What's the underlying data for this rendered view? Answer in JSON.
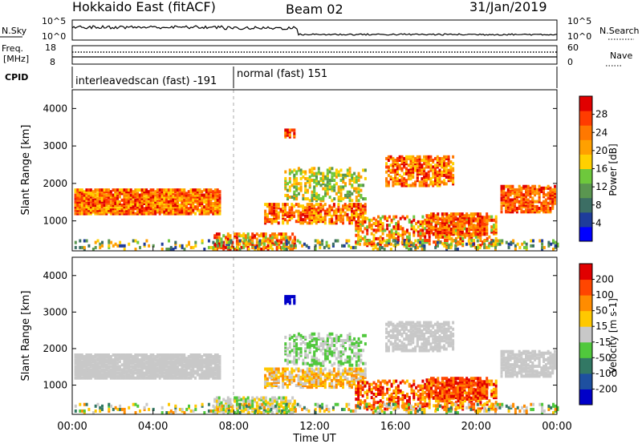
{
  "header": {
    "station": "Hokkaido East (fitACF)",
    "beam": "Beam 02",
    "date": "31/Jan/2019"
  },
  "panels": {
    "nsky_label": "N.Sky",
    "nsearch_label": "N.Search",
    "nsky_ticks": [
      "10^5",
      "10^0"
    ],
    "nsearch_ticks": [
      "10^5",
      "10^0"
    ],
    "freq_label": "Freq.",
    "freq_unit": "[MHz]",
    "freq_ticks": [
      "18",
      "8"
    ],
    "nave_label": "Nave",
    "nave_ticks": [
      "60",
      "0"
    ],
    "cpid_label": "CPID",
    "cpid_segments": [
      "interleavedscan (fast) -191",
      "normal (fast) 151"
    ]
  },
  "chart_data": [
    {
      "type": "heatmap",
      "name": "power",
      "ylabel": "Slant Range [km]",
      "y_ticks": [
        "1000",
        "2000",
        "3000",
        "4000"
      ],
      "ylim": [
        200,
        4500
      ],
      "colorbar_label": "Power [dB]",
      "colorbar_ticks": [
        "28",
        "24",
        "20",
        "16",
        "12",
        "8",
        "4"
      ],
      "colorscale": [
        "#0000ff",
        "#1e3c9b",
        "#3c6e64",
        "#5a9650",
        "#6ec83c",
        "#ffd000",
        "#ffa000",
        "#ff7800",
        "#ff3c00",
        "#e10000"
      ]
    },
    {
      "type": "heatmap",
      "name": "velocity",
      "ylabel": "Slant Range [km]",
      "y_ticks": [
        "1000",
        "2000",
        "3000",
        "4000"
      ],
      "ylim": [
        200,
        4500
      ],
      "colorbar_label": "Velocity [m s-1]",
      "colorbar_ticks": [
        "200",
        "100",
        "50",
        "15",
        "-15",
        "-50",
        "-100",
        "-200"
      ],
      "colorscale": [
        "#0000c8",
        "#1e50a0",
        "#327864",
        "#50c83c",
        "#c8c8c8",
        "#ffc800",
        "#ff8c00",
        "#ff4600",
        "#e10000"
      ]
    }
  ],
  "x_axis": {
    "label": "Time UT",
    "ticks": [
      "00:00",
      "04:00",
      "08:00",
      "12:00",
      "16:00",
      "20:00",
      "00:00"
    ]
  }
}
